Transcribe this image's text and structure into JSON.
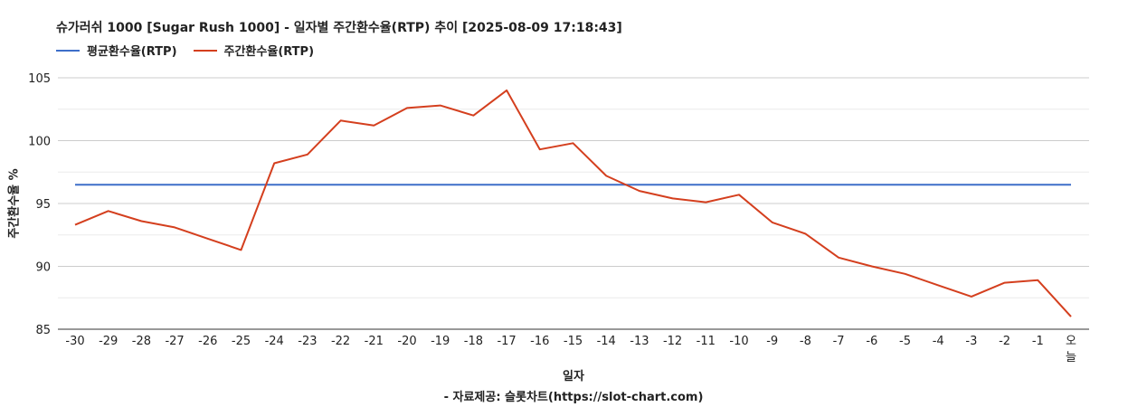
{
  "chart_data": {
    "type": "line",
    "title": "슈가러쉬 1000 [Sugar Rush 1000] - 일자별 주간환수율(RTP) 추이 [2025-08-09 17:18:43]",
    "xlabel": "일자",
    "ylabel": "주간환수율 %",
    "source": "- 자료제공: 슬롯차트(https://slot-chart.com)",
    "categories": [
      "-30",
      "-29",
      "-28",
      "-27",
      "-26",
      "-25",
      "-24",
      "-23",
      "-22",
      "-21",
      "-20",
      "-19",
      "-18",
      "-17",
      "-16",
      "-15",
      "-14",
      "-13",
      "-12",
      "-11",
      "-10",
      "-9",
      "-8",
      "-7",
      "-6",
      "-5",
      "-4",
      "-3",
      "-2",
      "-1",
      "오늘"
    ],
    "ylim": [
      85,
      105
    ],
    "yticks": [
      85,
      90,
      95,
      100,
      105
    ],
    "grid": true,
    "legend_position": "top-left",
    "series": [
      {
        "name": "평균환수율(RTP)",
        "color": "#3d6fc9",
        "values": [
          96.5,
          96.5,
          96.5,
          96.5,
          96.5,
          96.5,
          96.5,
          96.5,
          96.5,
          96.5,
          96.5,
          96.5,
          96.5,
          96.5,
          96.5,
          96.5,
          96.5,
          96.5,
          96.5,
          96.5,
          96.5,
          96.5,
          96.5,
          96.5,
          96.5,
          96.5,
          96.5,
          96.5,
          96.5,
          96.5,
          96.5
        ]
      },
      {
        "name": "주간환수율(RTP)",
        "color": "#d43f1e",
        "values": [
          93.3,
          94.4,
          93.6,
          93.1,
          92.2,
          91.3,
          98.2,
          98.9,
          101.6,
          101.2,
          102.6,
          102.8,
          102.0,
          104.0,
          99.3,
          99.8,
          97.2,
          96.0,
          95.4,
          95.1,
          95.7,
          93.5,
          92.6,
          90.7,
          90.0,
          89.4,
          88.5,
          87.6,
          88.7,
          88.9,
          86.0
        ]
      }
    ]
  }
}
